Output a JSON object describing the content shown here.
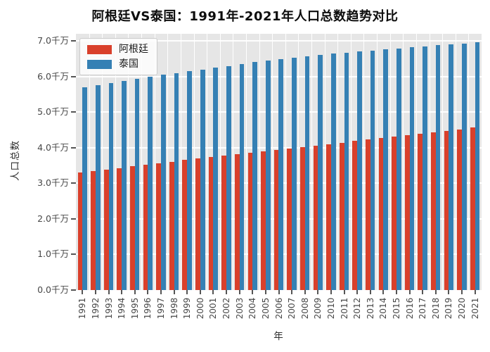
{
  "chart_data": {
    "type": "bar",
    "title": "阿根廷VS泰国：1991年-2021年人口总数趋势对比",
    "xlabel": "年",
    "ylabel": "人口总数",
    "unit": "千万",
    "categories": [
      "1991",
      "1992",
      "1993",
      "1994",
      "1995",
      "1996",
      "1997",
      "1998",
      "1999",
      "2000",
      "2001",
      "2002",
      "2003",
      "2004",
      "2005",
      "2006",
      "2007",
      "2008",
      "2009",
      "2010",
      "2011",
      "2012",
      "2013",
      "2014",
      "2015",
      "2016",
      "2017",
      "2018",
      "2019",
      "2020",
      "2021"
    ],
    "series": [
      {
        "key": "argentina",
        "name": "阿根廷",
        "color": "#d9402b",
        "values": [
          3.3,
          3.34,
          3.39,
          3.43,
          3.48,
          3.52,
          3.56,
          3.61,
          3.65,
          3.69,
          3.73,
          3.77,
          3.81,
          3.85,
          3.89,
          3.93,
          3.98,
          4.02,
          4.06,
          4.1,
          4.14,
          4.19,
          4.23,
          4.27,
          4.31,
          4.35,
          4.4,
          4.44,
          4.48,
          4.52,
          4.56
        ]
      },
      {
        "key": "thailand",
        "name": "泰国",
        "color": "#3580b4",
        "values": [
          5.7,
          5.76,
          5.82,
          5.88,
          5.94,
          5.99,
          6.05,
          6.1,
          6.15,
          6.2,
          6.25,
          6.3,
          6.35,
          6.4,
          6.44,
          6.48,
          6.52,
          6.56,
          6.6,
          6.64,
          6.67,
          6.7,
          6.73,
          6.76,
          6.79,
          6.82,
          6.85,
          6.88,
          6.91,
          6.93,
          6.96
        ]
      }
    ],
    "y_ticks": [
      "0.0千万",
      "1.0千万",
      "2.0千万",
      "3.0千万",
      "4.0千万",
      "5.0千万",
      "6.0千万",
      "7.0千万"
    ],
    "y_tick_values": [
      0,
      1,
      2,
      3,
      4,
      5,
      6,
      7
    ],
    "ylim": [
      0,
      7.2
    ],
    "grid": true,
    "legend_position": "upper-left",
    "plot_bg": "#e6e6e6",
    "grid_color": "#ffffff",
    "tick_color": "#555555"
  }
}
